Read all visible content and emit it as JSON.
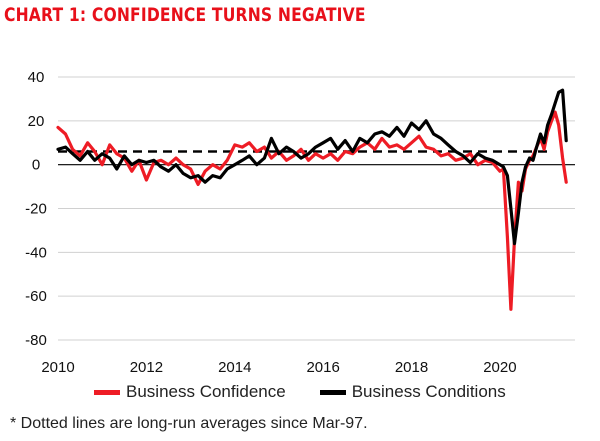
{
  "title": "CHART 1: CONFIDENCE TURNS NEGATIVE",
  "footnote": "* Dotted lines are long-run averages since Mar-97.",
  "colors": {
    "title": "#e8101a",
    "confidence": "#ee1c25",
    "conditions": "#000000",
    "grid": "#d0d0d0",
    "average": "#000000"
  },
  "chart_data": {
    "type": "line",
    "title": "CHART 1: CONFIDENCE TURNS NEGATIVE",
    "xlabel": "",
    "ylabel": "",
    "xlim": [
      2010,
      2021.7
    ],
    "ylim": [
      -80,
      40
    ],
    "x_ticks": [
      "2010",
      "2012",
      "2014",
      "2016",
      "2018",
      "2020"
    ],
    "y_ticks": [
      "40",
      "20",
      "0",
      "-20",
      "-40",
      "-60",
      "-80"
    ],
    "grid": "horizontal",
    "legend_position": "bottom",
    "series": [
      {
        "name": "Business Confidence",
        "color": "#ee1c25",
        "points": [
          [
            2010.0,
            17
          ],
          [
            2010.17,
            14
          ],
          [
            2010.33,
            7
          ],
          [
            2010.5,
            4
          ],
          [
            2010.67,
            10
          ],
          [
            2010.83,
            6
          ],
          [
            2011.0,
            0
          ],
          [
            2011.17,
            9
          ],
          [
            2011.33,
            5
          ],
          [
            2011.5,
            3
          ],
          [
            2011.67,
            -3
          ],
          [
            2011.83,
            2
          ],
          [
            2012.0,
            -7
          ],
          [
            2012.17,
            1
          ],
          [
            2012.33,
            2
          ],
          [
            2012.5,
            0
          ],
          [
            2012.67,
            3
          ],
          [
            2012.83,
            0
          ],
          [
            2013.0,
            -2
          ],
          [
            2013.17,
            -9
          ],
          [
            2013.33,
            -3
          ],
          [
            2013.5,
            0
          ],
          [
            2013.67,
            -2
          ],
          [
            2013.83,
            2
          ],
          [
            2014.0,
            9
          ],
          [
            2014.17,
            8
          ],
          [
            2014.33,
            10
          ],
          [
            2014.5,
            6
          ],
          [
            2014.67,
            8
          ],
          [
            2014.83,
            3
          ],
          [
            2015.0,
            6
          ],
          [
            2015.17,
            2
          ],
          [
            2015.33,
            4
          ],
          [
            2015.5,
            7
          ],
          [
            2015.67,
            2
          ],
          [
            2015.83,
            5
          ],
          [
            2016.0,
            3
          ],
          [
            2016.17,
            5
          ],
          [
            2016.33,
            2
          ],
          [
            2016.5,
            6
          ],
          [
            2016.67,
            5
          ],
          [
            2016.83,
            8
          ],
          [
            2017.0,
            10
          ],
          [
            2017.17,
            7
          ],
          [
            2017.33,
            12
          ],
          [
            2017.5,
            8
          ],
          [
            2017.67,
            9
          ],
          [
            2017.83,
            7
          ],
          [
            2018.0,
            10
          ],
          [
            2018.17,
            13
          ],
          [
            2018.33,
            8
          ],
          [
            2018.5,
            7
          ],
          [
            2018.67,
            4
          ],
          [
            2018.83,
            5
          ],
          [
            2019.0,
            2
          ],
          [
            2019.17,
            3
          ],
          [
            2019.33,
            5
          ],
          [
            2019.5,
            0
          ],
          [
            2019.67,
            2
          ],
          [
            2019.83,
            1
          ],
          [
            2020.0,
            -3
          ],
          [
            2020.08,
            -2
          ],
          [
            2020.17,
            -33
          ],
          [
            2020.25,
            -66
          ],
          [
            2020.33,
            -34
          ],
          [
            2020.42,
            -8
          ],
          [
            2020.5,
            -12
          ],
          [
            2020.58,
            -2
          ],
          [
            2020.67,
            2
          ],
          [
            2020.75,
            4
          ],
          [
            2020.83,
            8
          ],
          [
            2020.92,
            12
          ],
          [
            2021.0,
            7
          ],
          [
            2021.08,
            15
          ],
          [
            2021.17,
            20
          ],
          [
            2021.25,
            24
          ],
          [
            2021.33,
            18
          ],
          [
            2021.42,
            3
          ],
          [
            2021.5,
            -8
          ]
        ]
      },
      {
        "name": "Business Conditions",
        "color": "#000000",
        "points": [
          [
            2010.0,
            7
          ],
          [
            2010.17,
            8
          ],
          [
            2010.33,
            5
          ],
          [
            2010.5,
            2
          ],
          [
            2010.67,
            6
          ],
          [
            2010.83,
            2
          ],
          [
            2011.0,
            5
          ],
          [
            2011.17,
            3
          ],
          [
            2011.33,
            -2
          ],
          [
            2011.5,
            4
          ],
          [
            2011.67,
            0
          ],
          [
            2011.83,
            2
          ],
          [
            2012.0,
            1
          ],
          [
            2012.17,
            2
          ],
          [
            2012.33,
            -1
          ],
          [
            2012.5,
            -3
          ],
          [
            2012.67,
            0
          ],
          [
            2012.83,
            -4
          ],
          [
            2013.0,
            -6
          ],
          [
            2013.17,
            -5
          ],
          [
            2013.33,
            -8
          ],
          [
            2013.5,
            -5
          ],
          [
            2013.67,
            -6
          ],
          [
            2013.83,
            -2
          ],
          [
            2014.0,
            0
          ],
          [
            2014.17,
            2
          ],
          [
            2014.33,
            4
          ],
          [
            2014.5,
            0
          ],
          [
            2014.67,
            3
          ],
          [
            2014.83,
            12
          ],
          [
            2015.0,
            5
          ],
          [
            2015.17,
            8
          ],
          [
            2015.33,
            6
          ],
          [
            2015.5,
            3
          ],
          [
            2015.67,
            5
          ],
          [
            2015.83,
            8
          ],
          [
            2016.0,
            10
          ],
          [
            2016.17,
            12
          ],
          [
            2016.33,
            7
          ],
          [
            2016.5,
            11
          ],
          [
            2016.67,
            6
          ],
          [
            2016.83,
            12
          ],
          [
            2017.0,
            10
          ],
          [
            2017.17,
            14
          ],
          [
            2017.33,
            15
          ],
          [
            2017.5,
            13
          ],
          [
            2017.67,
            17
          ],
          [
            2017.83,
            13
          ],
          [
            2018.0,
            19
          ],
          [
            2018.17,
            16
          ],
          [
            2018.33,
            20
          ],
          [
            2018.5,
            14
          ],
          [
            2018.67,
            12
          ],
          [
            2018.83,
            9
          ],
          [
            2019.0,
            6
          ],
          [
            2019.17,
            4
          ],
          [
            2019.33,
            1
          ],
          [
            2019.5,
            5
          ],
          [
            2019.67,
            3
          ],
          [
            2019.83,
            2
          ],
          [
            2020.0,
            0
          ],
          [
            2020.08,
            -1
          ],
          [
            2020.17,
            -5
          ],
          [
            2020.25,
            -20
          ],
          [
            2020.33,
            -36
          ],
          [
            2020.42,
            -22
          ],
          [
            2020.5,
            -8
          ],
          [
            2020.58,
            -1
          ],
          [
            2020.67,
            3
          ],
          [
            2020.75,
            2
          ],
          [
            2020.83,
            8
          ],
          [
            2020.92,
            14
          ],
          [
            2021.0,
            10
          ],
          [
            2021.08,
            18
          ],
          [
            2021.17,
            23
          ],
          [
            2021.25,
            28
          ],
          [
            2021.33,
            33
          ],
          [
            2021.42,
            34
          ],
          [
            2021.5,
            11
          ]
        ]
      }
    ],
    "reference_lines": [
      {
        "name": "Business Confidence long-run average",
        "value": 6,
        "style": "dashed"
      },
      {
        "name": "Business Conditions long-run average",
        "value": 6,
        "style": "dashed"
      }
    ]
  }
}
